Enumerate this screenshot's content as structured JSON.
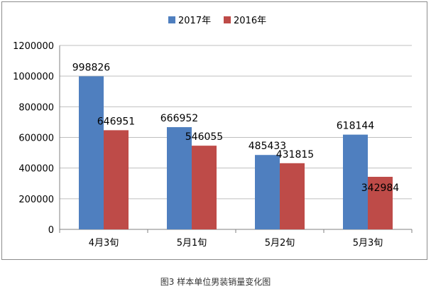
{
  "chart_data": {
    "type": "bar",
    "categories": [
      "4月3旬",
      "5月1旬",
      "5月2旬",
      "5月3旬"
    ],
    "series": [
      {
        "name": "2017年",
        "values": [
          998826,
          666952,
          485433,
          618144
        ],
        "color": "#4F7FBF"
      },
      {
        "name": "2016年",
        "values": [
          646951,
          546055,
          431815,
          342984
        ],
        "color": "#BE4B48"
      }
    ],
    "y_ticks": [
      "0",
      "200000",
      "400000",
      "600000",
      "800000",
      "1000000",
      "1200000"
    ],
    "ylim": [
      0,
      1200000
    ],
    "legend_position": "top-center",
    "grid": true
  },
  "caption": "图3    样本单位男装销量变化图"
}
